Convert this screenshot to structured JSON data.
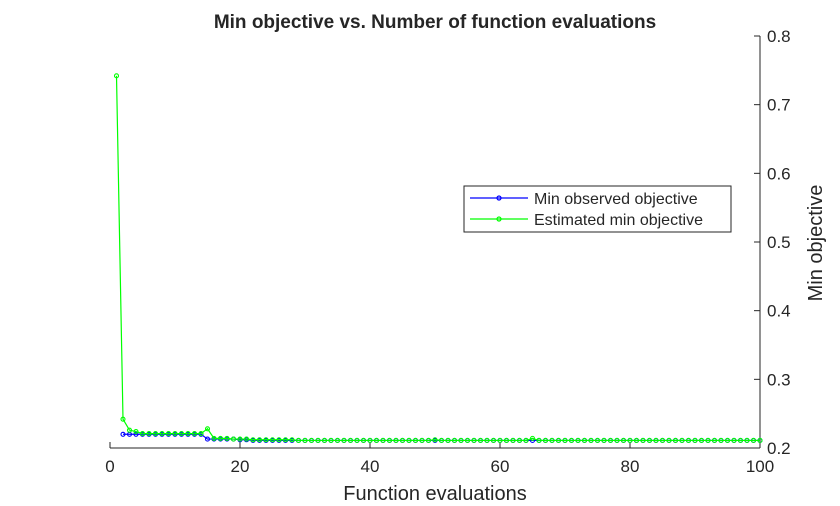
{
  "chart_data": {
    "type": "line",
    "title": "Min objective vs. Number of function evaluations",
    "xlabel": "Function evaluations",
    "ylabel": "Min objective",
    "xlim": [
      0,
      100
    ],
    "ylim": [
      0.2,
      0.8
    ],
    "x_ticks": [
      0,
      20,
      40,
      60,
      80,
      100
    ],
    "y_ticks": [
      0.2,
      0.3,
      0.4,
      0.5,
      0.6,
      0.7,
      0.8
    ],
    "y_axis_position": "right",
    "grid": false,
    "legend_position": "center-right",
    "series": [
      {
        "name": "Min observed objective",
        "color": "#0000ff",
        "marker": "circle",
        "x": [
          2,
          3,
          4,
          5,
          6,
          7,
          8,
          9,
          10,
          11,
          12,
          13,
          14,
          15,
          16,
          17,
          18,
          19,
          20,
          21,
          22,
          23,
          24,
          25,
          26,
          27,
          28,
          29,
          30,
          31,
          32,
          33,
          34,
          35,
          36,
          37,
          38,
          39,
          40,
          41,
          42,
          43,
          44,
          45,
          46,
          47,
          48,
          49,
          50,
          51,
          52,
          53,
          54,
          55,
          56,
          57,
          58,
          59,
          60,
          61,
          62,
          63,
          64,
          65,
          66,
          67,
          68,
          69,
          70,
          71,
          72,
          73,
          74,
          75,
          76,
          77,
          78,
          79,
          80,
          81,
          82,
          83,
          84,
          85,
          86,
          87,
          88,
          89,
          90,
          91,
          92,
          93,
          94,
          95,
          96,
          97,
          98,
          99,
          100
        ],
        "y": [
          0.22,
          0.22,
          0.22,
          0.22,
          0.22,
          0.22,
          0.22,
          0.22,
          0.22,
          0.22,
          0.22,
          0.22,
          0.22,
          0.213,
          0.213,
          0.213,
          0.213,
          0.213,
          0.212,
          0.212,
          0.211,
          0.211,
          0.211,
          0.211,
          0.211,
          0.211,
          0.211,
          0.211,
          0.211,
          0.211,
          0.211,
          0.211,
          0.211,
          0.211,
          0.211,
          0.211,
          0.211,
          0.211,
          0.211,
          0.211,
          0.211,
          0.211,
          0.211,
          0.211,
          0.211,
          0.211,
          0.211,
          0.211,
          0.211,
          0.211,
          0.211,
          0.211,
          0.211,
          0.211,
          0.211,
          0.211,
          0.211,
          0.211,
          0.211,
          0.211,
          0.211,
          0.211,
          0.211,
          0.211,
          0.211,
          0.211,
          0.211,
          0.211,
          0.211,
          0.211,
          0.211,
          0.211,
          0.211,
          0.211,
          0.211,
          0.211,
          0.211,
          0.211,
          0.211,
          0.211,
          0.211,
          0.211,
          0.211,
          0.211,
          0.211,
          0.211,
          0.211,
          0.211,
          0.211,
          0.211,
          0.211,
          0.211,
          0.211,
          0.211,
          0.211,
          0.211,
          0.211,
          0.211,
          0.211
        ]
      },
      {
        "name": "Estimated min objective",
        "color": "#00ff00",
        "marker": "circle",
        "x": [
          1,
          2,
          3,
          4,
          5,
          6,
          7,
          8,
          9,
          10,
          11,
          12,
          13,
          14,
          15,
          16,
          17,
          18,
          19,
          20,
          21,
          22,
          23,
          24,
          25,
          26,
          27,
          28,
          29,
          30,
          31,
          32,
          33,
          34,
          35,
          36,
          37,
          38,
          39,
          40,
          41,
          42,
          43,
          44,
          45,
          46,
          47,
          48,
          49,
          50,
          51,
          52,
          53,
          54,
          55,
          56,
          57,
          58,
          59,
          60,
          61,
          62,
          63,
          64,
          65,
          66,
          67,
          68,
          69,
          70,
          71,
          72,
          73,
          74,
          75,
          76,
          77,
          78,
          79,
          80,
          81,
          82,
          83,
          84,
          85,
          86,
          87,
          88,
          89,
          90,
          91,
          92,
          93,
          94,
          95,
          96,
          97,
          98,
          99,
          100
        ],
        "y": [
          0.742,
          0.242,
          0.226,
          0.224,
          0.221,
          0.221,
          0.221,
          0.221,
          0.221,
          0.221,
          0.221,
          0.221,
          0.221,
          0.221,
          0.228,
          0.214,
          0.214,
          0.214,
          0.213,
          0.213,
          0.213,
          0.212,
          0.212,
          0.212,
          0.212,
          0.212,
          0.212,
          0.212,
          0.211,
          0.211,
          0.211,
          0.211,
          0.211,
          0.211,
          0.211,
          0.211,
          0.211,
          0.211,
          0.211,
          0.211,
          0.211,
          0.211,
          0.211,
          0.211,
          0.211,
          0.211,
          0.211,
          0.211,
          0.211,
          0.212,
          0.211,
          0.211,
          0.211,
          0.211,
          0.211,
          0.211,
          0.211,
          0.211,
          0.211,
          0.211,
          0.211,
          0.211,
          0.211,
          0.211,
          0.214,
          0.211,
          0.211,
          0.211,
          0.211,
          0.211,
          0.211,
          0.211,
          0.211,
          0.211,
          0.211,
          0.211,
          0.211,
          0.211,
          0.211,
          0.211,
          0.211,
          0.211,
          0.211,
          0.211,
          0.211,
          0.211,
          0.211,
          0.211,
          0.211,
          0.211,
          0.211,
          0.211,
          0.211,
          0.211,
          0.211,
          0.211,
          0.211,
          0.211,
          0.211,
          0.211
        ]
      }
    ]
  }
}
